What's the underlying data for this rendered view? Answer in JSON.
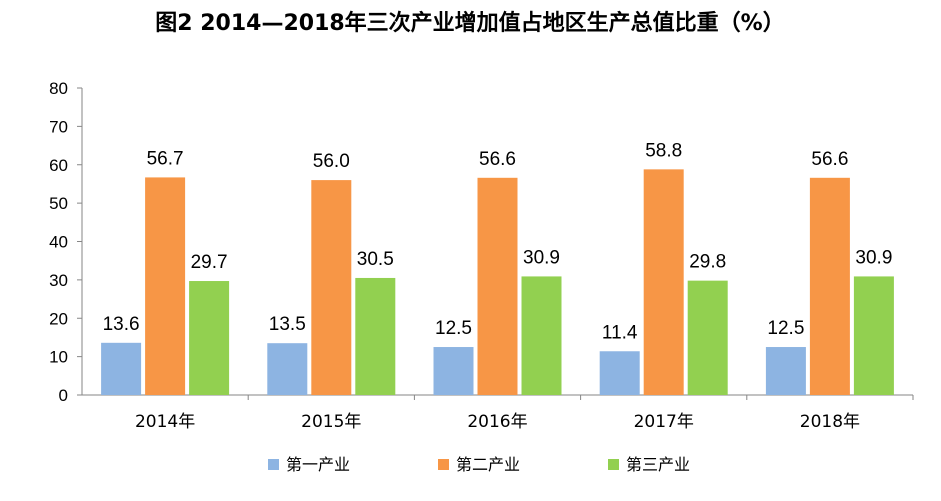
{
  "chart_data": {
    "type": "bar",
    "title": "图2  2014—2018年三次产业增加值占地区生产总值比重（%）",
    "xlabel": "",
    "ylabel": "",
    "ylim": [
      0,
      80
    ],
    "yticks": [
      "0",
      "10",
      "20",
      "30",
      "40",
      "50",
      "60",
      "70",
      "80"
    ],
    "categories": [
      "2014年",
      "2015年",
      "2016年",
      "2017年",
      "2018年"
    ],
    "series": [
      {
        "name": "第一产业",
        "color": "#8DB4E2",
        "values": [
          13.6,
          13.5,
          12.5,
          11.4,
          12.5
        ],
        "labels": [
          "13.6",
          "13.5",
          "12.5",
          "11.4",
          "12.5"
        ]
      },
      {
        "name": "第二产业",
        "color": "#F79646",
        "values": [
          56.7,
          56.0,
          56.6,
          58.8,
          56.6
        ],
        "labels": [
          "56.7",
          "56.0",
          "56.6",
          "58.8",
          "56.6"
        ]
      },
      {
        "name": "第三产业",
        "color": "#92D050",
        "values": [
          29.7,
          30.5,
          30.9,
          29.8,
          30.9
        ],
        "labels": [
          "29.7",
          "30.5",
          "30.9",
          "29.8",
          "30.9"
        ]
      }
    ],
    "grid": false,
    "legend": "bottom"
  }
}
